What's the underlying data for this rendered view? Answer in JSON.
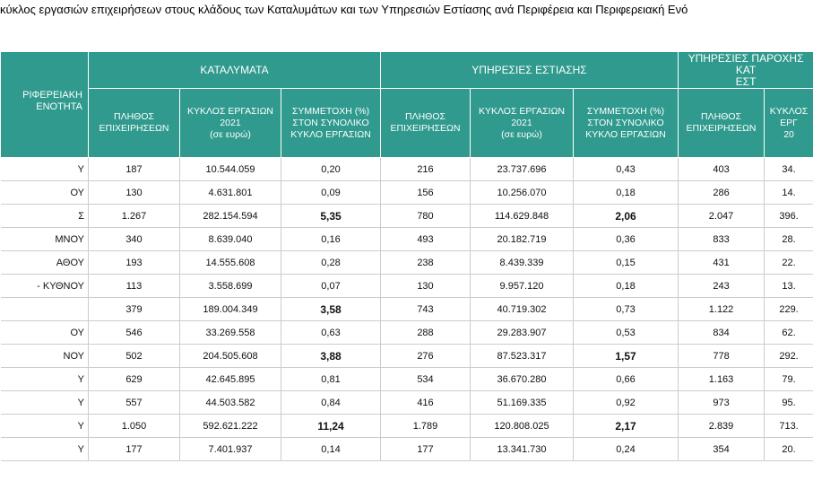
{
  "title": "κύκλος εργασιών επιχειρήσεων  στους κλάδους των Καταλυμάτων και των Υπηρεσιών Εστίασης  ανά Περιφέρεια και  Περιφερειακή Ενό",
  "table": {
    "header": {
      "region": "ΡΙΦΕΡΕΙΑΚΗ\nΕΝΟΤΗΤΑ",
      "groups": [
        "ΚΑΤΑΛΥΜΑΤΑ",
        "ΥΠΗΡΕΣΙΕΣ ΕΣΤΙΑΣΗΣ",
        "ΥΠΗΡΕΣΙΕΣ ΠΑΡΟΧΗΣ ΚΑΤ\nΕΣΤ"
      ],
      "subheaders": [
        "ΠΛΗΘΟΣ\nΕΠΙΧΕΙΡΗΣΕΩΝ",
        "ΚΥΚΛΟΣ ΕΡΓΑΣΙΩΝ\n2021\n(σε ευρώ)",
        "ΣΥΜΜΕΤΟΧΗ (%)\nΣΤΟΝ ΣΥΝΟΛΙΚΟ\nΚΥΚΛΟ ΕΡΓΑΣΙΩΝ",
        "ΠΛΗΘΟΣ\nΕΠΙΧΕΙΡΗΣΕΩΝ",
        "ΚΥΚΛΟΣ ΕΡΓΑΣΙΩΝ\n2021\n(σε ευρώ)",
        "ΣΥΜΜΕΤΟΧΗ (%)\nΣΤΟΝ ΣΥΝΟΛΙΚΟ\nΚΥΚΛΟ ΕΡΓΑΣΙΩΝ",
        "ΠΛΗΘΟΣ\nΕΠΙΧΕΙΡΗΣΕΩΝ",
        "ΚΥΚΛΟΣ ΕΡΓ\n20"
      ]
    },
    "rows": [
      [
        "Υ",
        "187",
        "10.544.059",
        "0,20",
        "216",
        "23.737.696",
        "0,43",
        "403",
        "34."
      ],
      [
        "ΟΥ",
        "130",
        "4.631.801",
        "0,09",
        "156",
        "10.256.070",
        "0,18",
        "286",
        "14."
      ],
      [
        "Σ",
        "1.267",
        "282.154.594",
        "5,35",
        "780",
        "114.629.848",
        "2,06",
        "2.047",
        "396."
      ],
      [
        "ΜΝΟΥ",
        "340",
        "8.639.040",
        "0,16",
        "493",
        "20.182.719",
        "0,36",
        "833",
        "28."
      ],
      [
        "ΑΘΟΥ",
        "193",
        "14.555.608",
        "0,28",
        "238",
        "8.439.339",
        "0,15",
        "431",
        "22."
      ],
      [
        "- ΚΥΘΝΟΥ",
        "113",
        "3.558.699",
        "0,07",
        "130",
        "9.957.120",
        "0,18",
        "243",
        "13."
      ],
      [
        null,
        "379",
        "189.004.349",
        "3,58",
        "743",
        "40.719.302",
        "0,73",
        "1.122",
        "229."
      ],
      [
        "ΟΥ",
        "546",
        "33.269.558",
        "0,63",
        "288",
        "29.283.907",
        "0,53",
        "834",
        "62."
      ],
      [
        "ΝΟΥ",
        "502",
        "204.505.608",
        "3,88",
        "276",
        "87.523.317",
        "1,57",
        "778",
        "292."
      ],
      [
        "Υ",
        "629",
        "42.645.895",
        "0,81",
        "534",
        "36.670.280",
        "0,66",
        "1.163",
        "79."
      ],
      [
        "Υ",
        "557",
        "44.503.582",
        "0,84",
        "416",
        "51.169.335",
        "0,92",
        "973",
        "95."
      ],
      [
        "Υ",
        "1.050",
        "592.621.222",
        "11,24",
        "1.789",
        "120.808.025",
        "2,17",
        "2.839",
        "713."
      ],
      [
        "Υ",
        "177",
        "7.401.937",
        "0,14",
        "177",
        "13.341.730",
        "0,24",
        "354",
        "20."
      ]
    ]
  }
}
